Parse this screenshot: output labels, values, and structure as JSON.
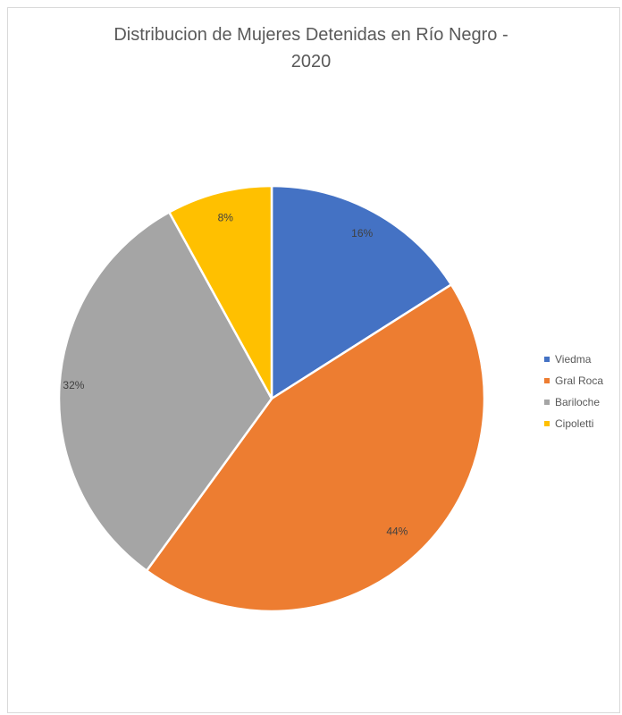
{
  "chart_data": {
    "type": "pie",
    "title_lines": [
      "Distribucion de Mujeres Detenidas en Río Negro -",
      "2020"
    ],
    "categories": [
      "Viedma",
      "Gral Roca",
      "Bariloche",
      "Cipoletti"
    ],
    "values": [
      16,
      44,
      32,
      8
    ],
    "labels": [
      "16%",
      "44%",
      "32%",
      "8%"
    ],
    "colors": [
      "#4472c4",
      "#ed7d31",
      "#a5a5a5",
      "#ffc000"
    ],
    "legend_position": "right"
  }
}
